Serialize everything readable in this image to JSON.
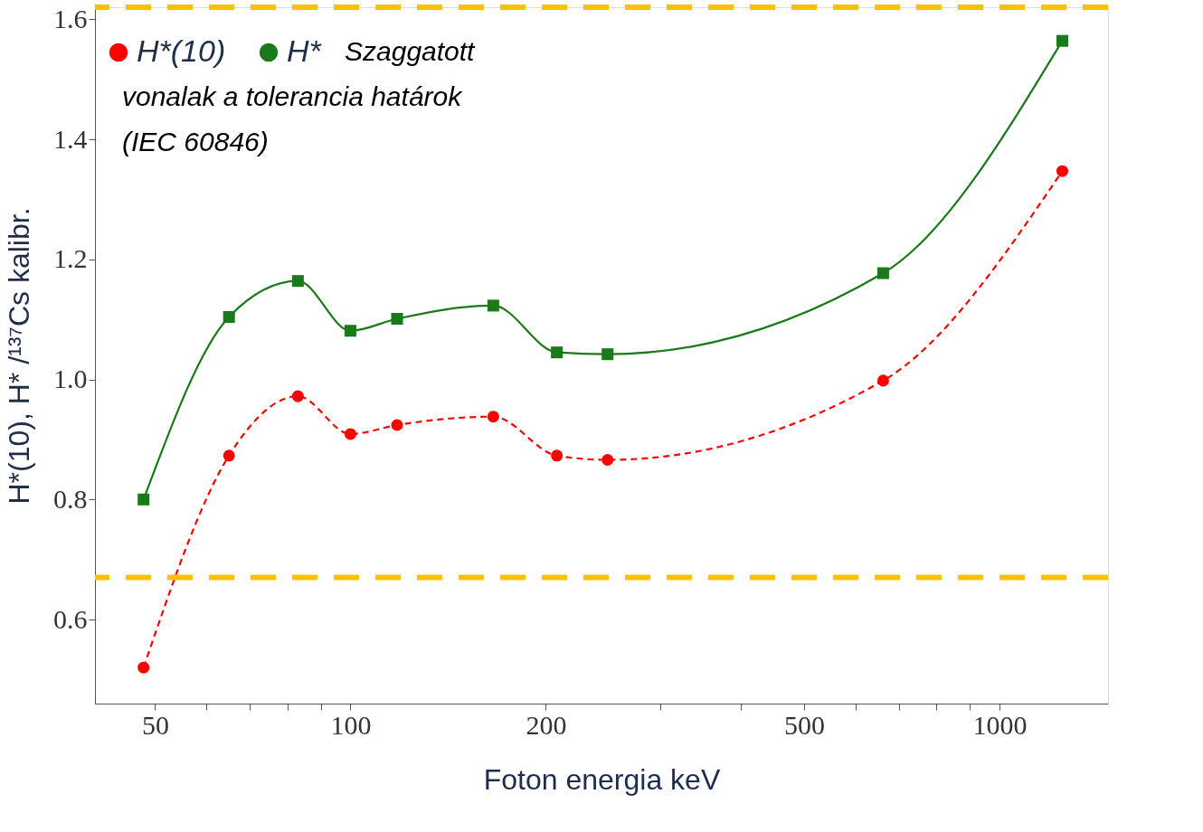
{
  "chart_data": {
    "type": "line",
    "xlabel": "Foton  energia keV",
    "ylabel": "H*(10), H* /¹³⁷Cs kalibr.",
    "x": [
      48,
      65,
      83,
      100,
      118,
      166,
      208,
      249,
      662,
      1250
    ],
    "series": [
      {
        "name": "H*(10)",
        "color": "#ff0000",
        "marker": "circle",
        "line_style": "dashed",
        "values": [
          0.52,
          0.873,
          0.972,
          0.909,
          0.924,
          0.938,
          0.873,
          0.866,
          0.998,
          1.347
        ]
      },
      {
        "name": "H*",
        "color": "#1a7a1a",
        "marker": "square",
        "line_style": "solid",
        "values": [
          0.8,
          1.104,
          1.164,
          1.081,
          1.101,
          1.123,
          1.045,
          1.042,
          1.177,
          1.564
        ]
      }
    ],
    "annotations": [
      "Szaggatott vonalak a tolerancia határok (IEC 60846)"
    ],
    "ref_lines": [
      {
        "axis": "y",
        "value": 1.62,
        "color": "#ffc000",
        "line_style": "dashed"
      },
      {
        "axis": "y",
        "value": 0.67,
        "color": "#ffc000",
        "line_style": "dashed"
      }
    ],
    "log": "x",
    "xlim": [
      40.4,
      1470
    ],
    "ylim": [
      0.46,
      1.62
    ],
    "xticks": [
      50,
      {
        "value": 60,
        "label": null
      },
      {
        "value": 70,
        "label": null
      },
      {
        "value": 80,
        "label": null
      },
      {
        "value": 90,
        "label": null
      },
      100,
      200,
      {
        "value": 300,
        "label": null
      },
      {
        "value": 400,
        "label": null
      },
      500,
      {
        "value": 600,
        "label": null
      },
      {
        "value": 700,
        "label": null
      },
      {
        "value": 800,
        "label": null
      },
      {
        "value": 900,
        "label": null
      },
      1000
    ],
    "yticks": [
      {
        "value": 0.6,
        "label": "0.6"
      },
      {
        "value": 0.8,
        "label": "0.8"
      },
      {
        "value": 1.0,
        "label": "1.0"
      },
      {
        "value": 1.2,
        "label": "1.2"
      },
      {
        "value": 1.4,
        "label": "1.4"
      },
      {
        "value": 1.6,
        "label": "1.6"
      }
    ],
    "grid": false,
    "legend": "top left"
  }
}
